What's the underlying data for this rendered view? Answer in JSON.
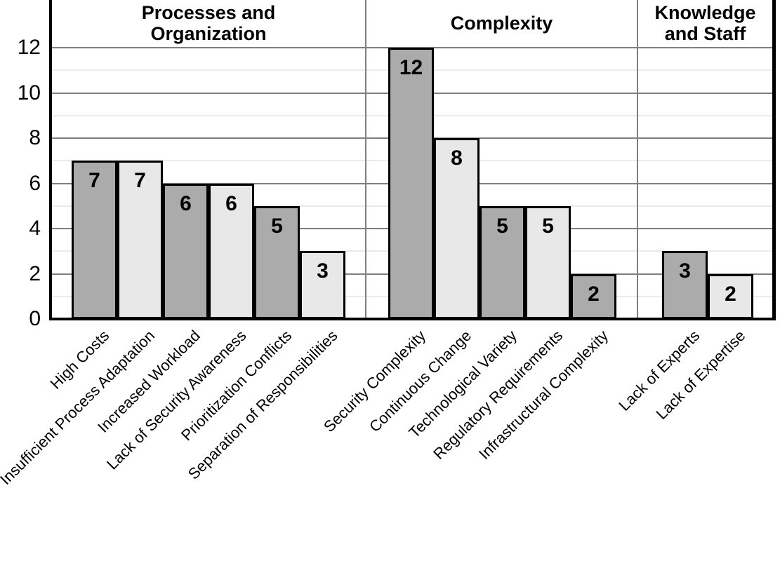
{
  "chart_data": {
    "type": "bar",
    "title": "",
    "xlabel": "",
    "ylabel": "",
    "ylim": [
      0,
      14
    ],
    "yticks": [
      0,
      2,
      4,
      6,
      8,
      10,
      12
    ],
    "minor_ticks": [
      1,
      3,
      5,
      7,
      9,
      11
    ],
    "grid": "horizontal major gray lines at even values, faint minor lines at odd values",
    "legend_position": "none",
    "value_labels": "inside bar near top, bold",
    "colors": {
      "bar_dark": "#ababab",
      "bar_light": "#e8e8e8",
      "bar_border": "#000000",
      "axis": "#000000",
      "major_grid": "#7f7f7f",
      "minor_grid": "#ebebeb",
      "separator": "#808080",
      "background": "#ffffff"
    },
    "groups": [
      {
        "title": "Processes and Organization",
        "bars": [
          {
            "label": "High Costs",
            "value": 7,
            "shade": "dark"
          },
          {
            "label": "Insufficient Process Adaptation",
            "value": 7,
            "shade": "light"
          },
          {
            "label": "Increased Workload",
            "value": 6,
            "shade": "dark"
          },
          {
            "label": "Lack of Security Awareness",
            "value": 6,
            "shade": "light"
          },
          {
            "label": "Prioritization Conflicts",
            "value": 5,
            "shade": "dark"
          },
          {
            "label": "Separation of Responsibilities",
            "value": 3,
            "shade": "light"
          }
        ]
      },
      {
        "title": "Complexity",
        "bars": [
          {
            "label": "Security Complexity",
            "value": 12,
            "shade": "dark"
          },
          {
            "label": "Continuous Change",
            "value": 8,
            "shade": "light"
          },
          {
            "label": "Technological Variety",
            "value": 5,
            "shade": "dark"
          },
          {
            "label": "Regulatory Requirements",
            "value": 5,
            "shade": "light"
          },
          {
            "label": "Infrastructural Complexity",
            "value": 2,
            "shade": "dark"
          }
        ]
      },
      {
        "title": "Knowledge and Staff",
        "bars": [
          {
            "label": "Lack of Experts",
            "value": 3,
            "shade": "dark"
          },
          {
            "label": "Lack of Expertise",
            "value": 2,
            "shade": "light"
          }
        ]
      }
    ]
  }
}
